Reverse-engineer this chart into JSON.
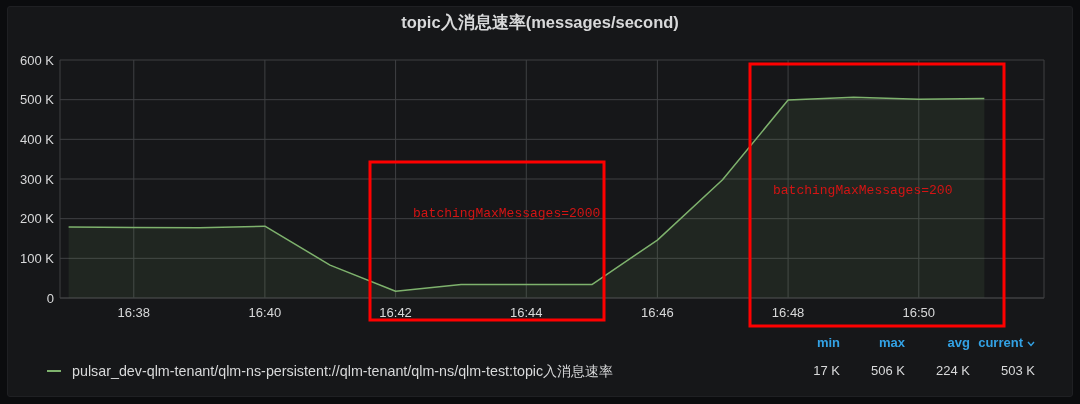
{
  "chart_data": {
    "type": "area",
    "title": "topic入消息速率(messages/second)",
    "x": [
      16.6167,
      16.6333,
      16.65,
      16.6667,
      16.6833,
      16.7,
      16.7167,
      16.7333,
      16.75,
      16.7667,
      16.7833,
      16.8,
      16.8167,
      16.8333,
      16.85
    ],
    "series": [
      {
        "name": "pulsar_dev-qlm-tenant/qlm-ns-persistent://qlm-tenant/qlm-ns/qlm-test:topic入消息速率",
        "color": "#7eb26d",
        "values": [
          179000,
          178000,
          177000,
          181000,
          83000,
          17000,
          34000,
          34000,
          34000,
          146000,
          298000,
          499000,
          506000,
          501000,
          503000
        ]
      }
    ],
    "xlim": [
      16.6145,
      16.8652
    ],
    "xticks": [
      {
        "value": 16.6333,
        "label": "16:38"
      },
      {
        "value": 16.6667,
        "label": "16:40"
      },
      {
        "value": 16.7,
        "label": "16:42"
      },
      {
        "value": 16.7333,
        "label": "16:44"
      },
      {
        "value": 16.7667,
        "label": "16:46"
      },
      {
        "value": 16.8,
        "label": "16:48"
      },
      {
        "value": 16.8333,
        "label": "16:50"
      }
    ],
    "ylim": [
      0,
      600000
    ],
    "yticks": [
      0,
      {
        "value": 100000,
        "label": "100 K"
      },
      {
        "value": 200000,
        "label": "200 K"
      },
      {
        "value": 300000,
        "label": "300 K"
      },
      {
        "value": 400000,
        "label": "400 K"
      },
      {
        "value": 500000,
        "label": "500 K"
      },
      {
        "value": 600000,
        "label": "600 K"
      }
    ],
    "grid": true,
    "legend": "bottom",
    "annotations": [
      "batchingMaxMessages=2000",
      "batchingMaxMessages=200",
      "min",
      "max",
      "avg",
      "current",
      "17 K",
      "506 K",
      "224 K",
      "503 K"
    ]
  }
}
